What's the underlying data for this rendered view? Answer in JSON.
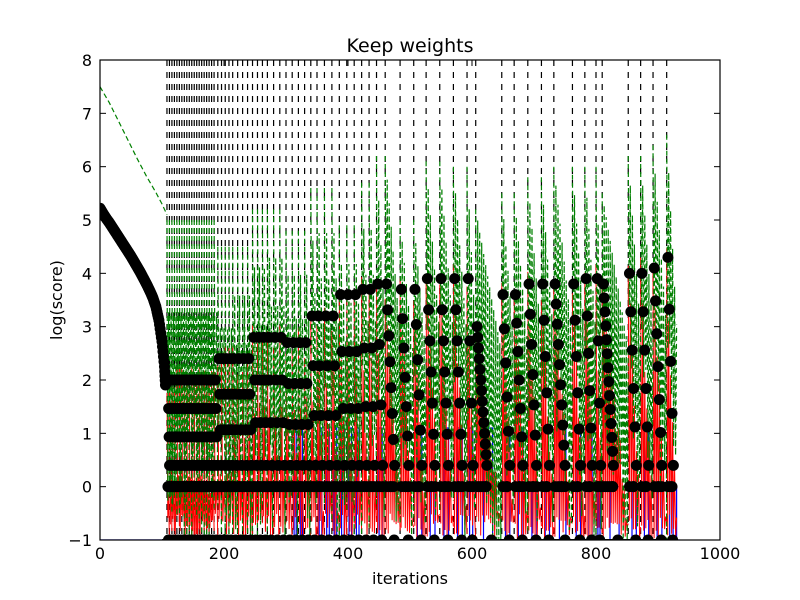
{
  "chart_data": {
    "type": "line",
    "title": "Keep weights",
    "xlabel": "iterations",
    "ylabel": "log(score)",
    "xlim": [
      0,
      1000
    ],
    "ylim": [
      -1,
      8
    ],
    "xticks": [
      0,
      200,
      400,
      600,
      800,
      1000
    ],
    "yticks": [
      -1,
      0,
      1,
      2,
      3,
      4,
      5,
      6,
      7,
      8
    ],
    "grid": false,
    "colors": {
      "blue_series": "#0000ff",
      "red_series": "#ff0000",
      "green_series": "#008000",
      "markers": "#000000",
      "vlines": "#000000"
    },
    "reset_iterations": [
      108,
      112,
      116,
      120,
      124,
      128,
      132,
      136,
      140,
      144,
      148,
      152,
      156,
      160,
      164,
      168,
      172,
      176,
      180,
      184,
      190,
      196,
      202,
      208,
      214,
      222,
      230,
      238,
      246,
      254,
      262,
      270,
      280,
      290,
      300,
      310,
      320,
      330,
      340,
      350,
      362,
      374,
      386,
      398,
      410,
      422,
      434,
      446,
      460,
      484,
      506,
      526,
      548,
      570,
      592,
      606,
      648,
      668,
      690,
      712,
      732,
      762,
      782,
      800,
      810,
      852,
      872,
      892,
      914
    ],
    "declining_curve": [
      [
        0,
        5.22
      ],
      [
        5,
        5.12
      ],
      [
        10,
        5.03
      ],
      [
        15,
        4.95
      ],
      [
        20,
        4.86
      ],
      [
        25,
        4.77
      ],
      [
        30,
        4.68
      ],
      [
        35,
        4.59
      ],
      [
        40,
        4.5
      ],
      [
        45,
        4.41
      ],
      [
        50,
        4.32
      ],
      [
        55,
        4.22
      ],
      [
        60,
        4.12
      ],
      [
        65,
        4.02
      ],
      [
        70,
        3.91
      ],
      [
        75,
        3.8
      ],
      [
        80,
        3.68
      ],
      [
        85,
        3.55
      ],
      [
        90,
        3.38
      ],
      [
        95,
        3.12
      ],
      [
        100,
        2.72
      ],
      [
        104,
        2.25
      ],
      [
        106,
        1.82
      ]
    ],
    "initial_green_curve": [
      [
        0,
        7.5
      ],
      [
        15,
        7.2
      ],
      [
        30,
        6.85
      ],
      [
        45,
        6.5
      ],
      [
        60,
        6.15
      ],
      [
        75,
        5.82
      ],
      [
        90,
        5.52
      ],
      [
        100,
        5.3
      ],
      [
        108,
        5.1
      ]
    ],
    "cycle_peaks": [
      {
        "x": 108,
        "peak": 2.0,
        "green": 5.0
      },
      {
        "x": 190,
        "peak": 2.4,
        "green": 4.5
      },
      {
        "x": 246,
        "peak": 2.8,
        "green": 5.2
      },
      {
        "x": 300,
        "peak": 2.7,
        "green": 4.8
      },
      {
        "x": 340,
        "peak": 3.2,
        "green": 5.6
      },
      {
        "x": 386,
        "peak": 3.6,
        "green": 4.9
      },
      {
        "x": 422,
        "peak": 3.7,
        "green": 5.7
      },
      {
        "x": 446,
        "peak": 3.8,
        "green": 6.2
      },
      {
        "x": 484,
        "peak": 3.7,
        "green": 5.0
      },
      {
        "x": 526,
        "peak": 3.9,
        "green": 6.1
      },
      {
        "x": 570,
        "peak": 3.9,
        "green": 6.0
      },
      {
        "x": 606,
        "peak": 3.0,
        "green": 5.2
      },
      {
        "x": 648,
        "peak": 3.6,
        "green": 5.5
      },
      {
        "x": 690,
        "peak": 3.8,
        "green": 5.8
      },
      {
        "x": 732,
        "peak": 3.8,
        "green": 6.0
      },
      {
        "x": 782,
        "peak": 3.9,
        "green": 6.0
      },
      {
        "x": 810,
        "peak": 3.8,
        "green": 5.5
      },
      {
        "x": 852,
        "peak": 4.0,
        "green": 6.2
      },
      {
        "x": 892,
        "peak": 4.1,
        "green": 6.4
      },
      {
        "x": 914,
        "peak": 4.3,
        "green": 6.6
      }
    ]
  }
}
